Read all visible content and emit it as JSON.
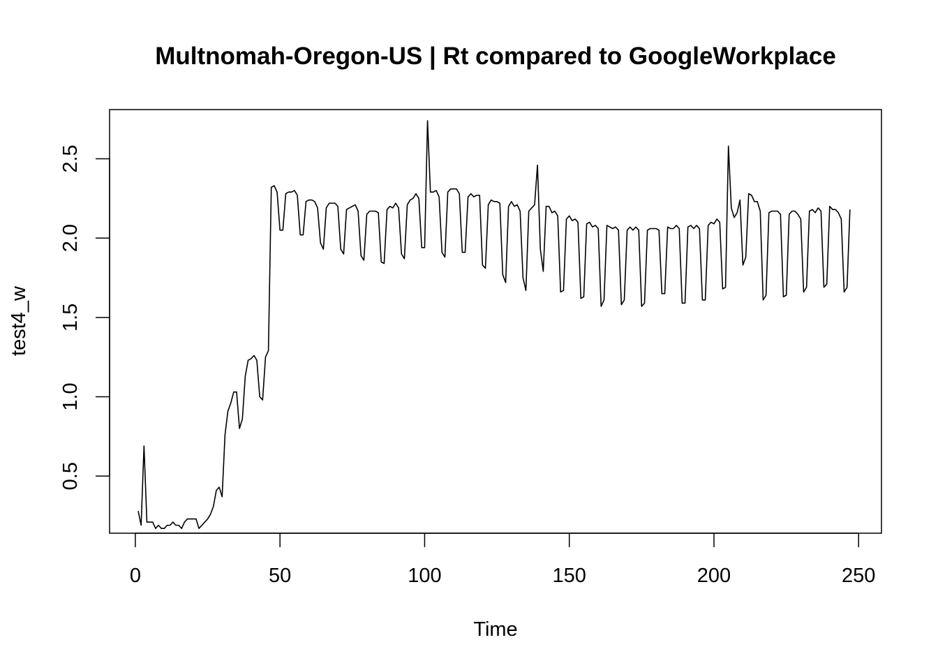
{
  "chart_data": {
    "type": "line",
    "title": "Multnomah-Oregon-US | Rt compared to GoogleWorkplace",
    "xlabel": "Time",
    "ylabel": "test4_w",
    "xlim": [
      -8.9,
      257.9
    ],
    "ylim": [
      0.14,
      2.81
    ],
    "x_ticks": [
      0,
      50,
      100,
      150,
      200,
      250
    ],
    "x_tick_labels": [
      "0",
      "50",
      "100",
      "150",
      "200",
      "250"
    ],
    "y_ticks": [
      0.5,
      1.0,
      1.5,
      2.0,
      2.5
    ],
    "y_tick_labels": [
      "0.5",
      "1.0",
      "1.5",
      "2.0",
      "2.5"
    ],
    "grid": false,
    "legend": "none",
    "line_color": "#000000",
    "series": [
      {
        "x_start": 1,
        "values": [
          0.28,
          0.19,
          0.69,
          0.21,
          0.21,
          0.21,
          0.17,
          0.19,
          0.17,
          0.17,
          0.19,
          0.19,
          0.21,
          0.19,
          0.19,
          0.17,
          0.21,
          0.23,
          0.23,
          0.23,
          0.23,
          0.17,
          0.19,
          0.21,
          0.23,
          0.26,
          0.31,
          0.41,
          0.43,
          0.37,
          0.76,
          0.91,
          0.96,
          1.03,
          1.03,
          0.8,
          0.86,
          1.13,
          1.23,
          1.24,
          1.26,
          1.23,
          1.0,
          0.98,
          1.25,
          1.29,
          2.32,
          2.33,
          2.29,
          2.05,
          2.05,
          2.28,
          2.29,
          2.29,
          2.3,
          2.27,
          2.02,
          2.02,
          2.23,
          2.24,
          2.24,
          2.23,
          2.19,
          1.97,
          1.93,
          2.19,
          2.22,
          2.22,
          2.22,
          2.2,
          1.93,
          1.9,
          2.18,
          2.19,
          2.2,
          2.21,
          2.17,
          1.89,
          1.86,
          2.15,
          2.17,
          2.17,
          2.17,
          2.16,
          1.85,
          1.84,
          2.18,
          2.2,
          2.19,
          2.22,
          2.19,
          1.9,
          1.87,
          2.21,
          2.24,
          2.25,
          2.28,
          2.25,
          1.94,
          1.94,
          2.74,
          2.29,
          2.29,
          2.3,
          2.26,
          1.91,
          1.88,
          2.29,
          2.31,
          2.31,
          2.31,
          2.28,
          1.91,
          1.91,
          2.26,
          2.28,
          2.26,
          2.27,
          2.27,
          1.83,
          1.81,
          2.21,
          2.24,
          2.23,
          2.23,
          2.22,
          1.77,
          1.72,
          2.2,
          2.23,
          2.2,
          2.21,
          2.17,
          1.75,
          1.67,
          2.17,
          2.19,
          2.21,
          2.46,
          1.93,
          1.79,
          2.2,
          2.2,
          2.16,
          2.17,
          2.14,
          1.66,
          1.67,
          2.12,
          2.14,
          2.11,
          2.12,
          2.1,
          1.62,
          1.63,
          2.09,
          2.1,
          2.07,
          2.08,
          2.06,
          1.57,
          1.61,
          2.08,
          2.07,
          2.06,
          2.07,
          2.05,
          1.58,
          1.61,
          2.05,
          2.07,
          2.05,
          2.07,
          2.05,
          1.57,
          1.59,
          2.05,
          2.06,
          2.06,
          2.06,
          2.05,
          1.65,
          1.65,
          2.07,
          2.06,
          2.06,
          2.08,
          2.06,
          1.59,
          1.59,
          2.07,
          2.08,
          2.06,
          2.08,
          2.06,
          1.61,
          1.61,
          2.08,
          2.1,
          2.09,
          2.12,
          2.1,
          1.68,
          1.69,
          2.58,
          2.19,
          2.13,
          2.16,
          2.24,
          1.83,
          1.88,
          2.28,
          2.27,
          2.23,
          2.23,
          2.17,
          1.61,
          1.64,
          2.16,
          2.17,
          2.17,
          2.17,
          2.15,
          1.63,
          1.64,
          2.15,
          2.17,
          2.17,
          2.15,
          2.12,
          1.66,
          1.69,
          2.17,
          2.18,
          2.16,
          2.19,
          2.17,
          1.69,
          1.71,
          2.2,
          2.18,
          2.18,
          2.16,
          2.12,
          1.66,
          1.69,
          2.18
        ]
      }
    ]
  }
}
